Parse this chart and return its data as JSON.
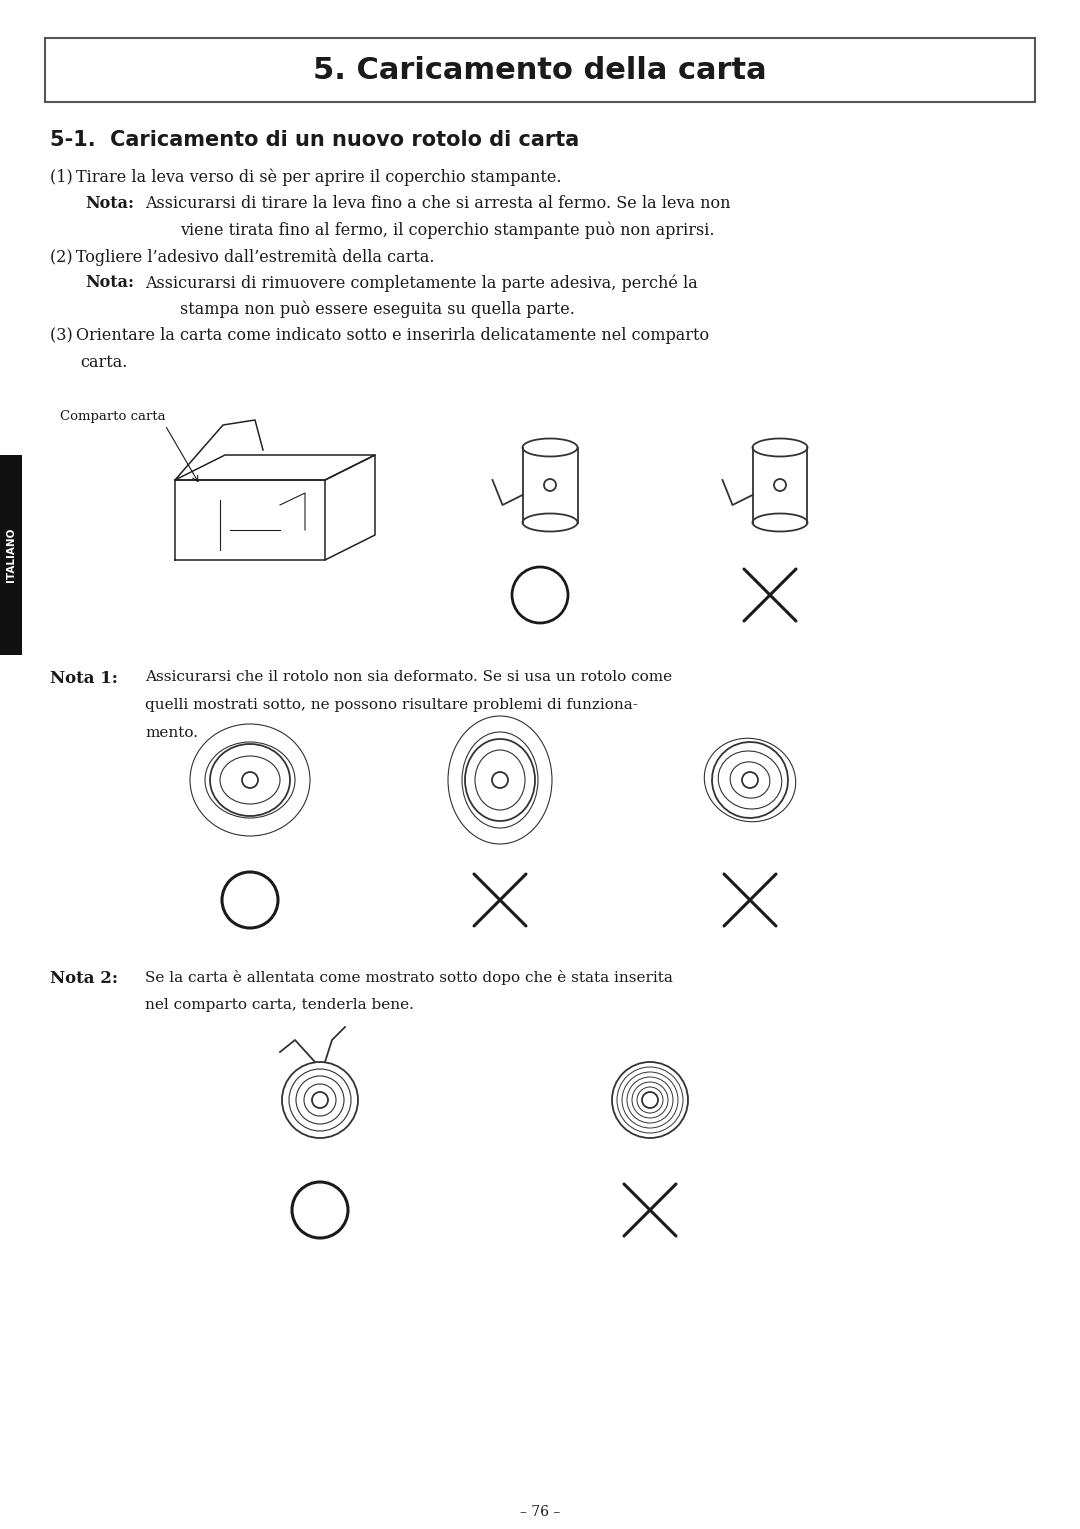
{
  "title": "5. Caricamento della carta",
  "subtitle": "5-1.  Caricamento di un nuovo rotolo di carta",
  "bg_color": "#ffffff",
  "text_color": "#1a1a1a",
  "page_number": "– 76 –",
  "italiano_label": "ITALIANO",
  "body": [
    {
      "type": "item",
      "num": "(1)",
      "text": "Tirare la leva verso di sè per aprire il coperchio stampante."
    },
    {
      "type": "nota",
      "label": "Nota:",
      "line1": "Assicurarsi di tirare la leva fino a che si arresta al fermo. Se la leva non",
      "line2": "viene tirata fino al fermo, il coperchio stampante può non aprirsi."
    },
    {
      "type": "item",
      "num": "(2)",
      "text": "Togliere l’adesivo dall’estremità della carta."
    },
    {
      "type": "nota",
      "label": "Nota:",
      "line1": "Assicurarsi di rimuovere completamente la parte adesiva, perché la",
      "line2": "stampa non può essere eseguita su quella parte."
    },
    {
      "type": "item2",
      "num": "(3)",
      "line1": "Orientare la carta come indicato sotto e inserirla delicatamente nel comparto",
      "line2": "carta."
    }
  ],
  "nota1_label": "Nota 1:",
  "nota1_lines": [
    "Assicurarsi che il rotolo non sia deformato. Se si usa un rotolo come",
    "quelli mostrati sotto, ne possono risultare problemi di funziona-",
    "mento."
  ],
  "nota2_label": "Nota 2:",
  "nota2_lines": [
    "Se la carta è allentata come mostrato sotto dopo che è stata inserita",
    "nel comparto carta, tenderla bene."
  ]
}
